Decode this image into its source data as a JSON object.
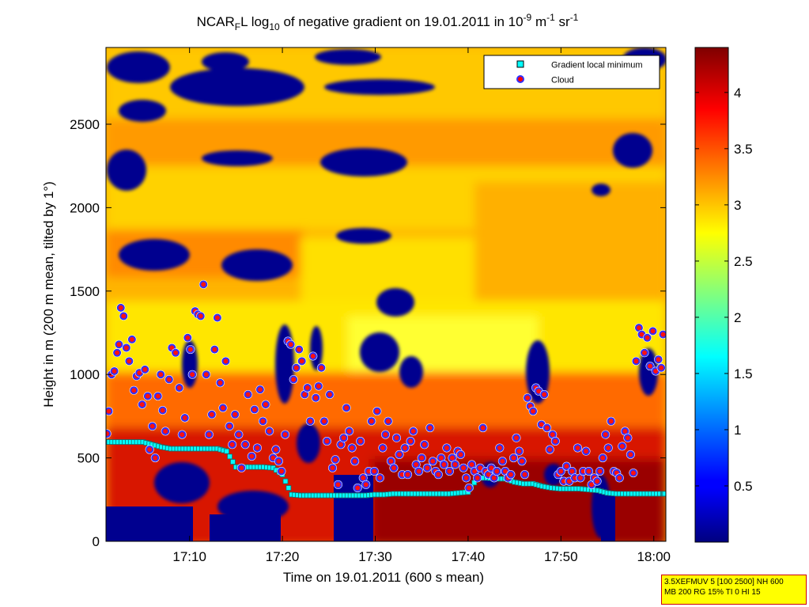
{
  "chart_data": {
    "type": "heatmap",
    "title": {
      "prefix": "NCAR",
      "prefix_sub": "F",
      "part1": "L log",
      "log_sub": "10",
      "part2": " of negative gradient on 19.01.2011 in 10",
      "exp1": "-9",
      "part3": " m",
      "exp2": "-1",
      "part4": " sr",
      "exp3": "-1"
    },
    "xlabel": "Time on 19.01.2011 (600 s mean)",
    "ylabel": "Height in m (200 m mean, tilted by 1°)",
    "x_unit": "minutes after 17:00",
    "xlim": [
      1,
      61.3
    ],
    "ylim": [
      0,
      2960
    ],
    "xticks": [
      {
        "value": 10,
        "label": "17:10"
      },
      {
        "value": 20,
        "label": "17:20"
      },
      {
        "value": 30,
        "label": "17:30"
      },
      {
        "value": 40,
        "label": "17:40"
      },
      {
        "value": 50,
        "label": "17:50"
      },
      {
        "value": 60,
        "label": "18:00"
      }
    ],
    "yticks": [
      0,
      500,
      1000,
      1500,
      2000,
      2500
    ],
    "colorbar": {
      "colormap": "jet",
      "range": [
        0,
        4.4
      ],
      "ticks": [
        0.5,
        1,
        1.5,
        2,
        2.5,
        3,
        3.5,
        4
      ]
    },
    "legend": {
      "placement": "top-right",
      "entries": [
        {
          "label": "Gradient local minimum",
          "marker": "square",
          "color": "#00ffff"
        },
        {
          "label": "Cloud",
          "marker": "circle",
          "color": "#ff0000"
        }
      ]
    },
    "series": [
      {
        "name": "Gradient local minimum",
        "points": [
          [
            1,
            595
          ],
          [
            2,
            595
          ],
          [
            3,
            595
          ],
          [
            4,
            595
          ],
          [
            5,
            595
          ],
          [
            6,
            580
          ],
          [
            7,
            565
          ],
          [
            8,
            555
          ],
          [
            9,
            555
          ],
          [
            10,
            555
          ],
          [
            11,
            555
          ],
          [
            12,
            555
          ],
          [
            13,
            555
          ],
          [
            14,
            540
          ],
          [
            15,
            445
          ],
          [
            16,
            445
          ],
          [
            17,
            445
          ],
          [
            18,
            445
          ],
          [
            19,
            440
          ],
          [
            20,
            400
          ],
          [
            21,
            280
          ],
          [
            22,
            275
          ],
          [
            23,
            275
          ],
          [
            24,
            275
          ],
          [
            25,
            275
          ],
          [
            26,
            275
          ],
          [
            27,
            275
          ],
          [
            28,
            275
          ],
          [
            29,
            275
          ],
          [
            30,
            280
          ],
          [
            31,
            280
          ],
          [
            32,
            285
          ],
          [
            33,
            285
          ],
          [
            34,
            285
          ],
          [
            35,
            285
          ],
          [
            36,
            285
          ],
          [
            37,
            285
          ],
          [
            38,
            285
          ],
          [
            39,
            290
          ],
          [
            40,
            295
          ],
          [
            41,
            380
          ],
          [
            42,
            380
          ],
          [
            43,
            375
          ],
          [
            44,
            375
          ],
          [
            45,
            355
          ],
          [
            46,
            345
          ],
          [
            47,
            345
          ],
          [
            48,
            330
          ],
          [
            49,
            320
          ],
          [
            50,
            315
          ],
          [
            51,
            315
          ],
          [
            52,
            315
          ],
          [
            53,
            310
          ],
          [
            54,
            305
          ],
          [
            55,
            290
          ],
          [
            56,
            285
          ],
          [
            57,
            285
          ],
          [
            58,
            285
          ],
          [
            59,
            285
          ],
          [
            60,
            285
          ],
          [
            61,
            285
          ]
        ]
      },
      {
        "name": "Cloud",
        "points": [
          [
            1.1,
            645
          ],
          [
            1.3,
            780
          ],
          [
            1.6,
            1000
          ],
          [
            1.9,
            1020
          ],
          [
            2.2,
            1130
          ],
          [
            2.4,
            1180
          ],
          [
            2.6,
            1400
          ],
          [
            2.9,
            1350
          ],
          [
            3.2,
            1160
          ],
          [
            3.5,
            1080
          ],
          [
            3.8,
            1210
          ],
          [
            4.0,
            905
          ],
          [
            4.3,
            990
          ],
          [
            4.6,
            1010
          ],
          [
            4.9,
            820
          ],
          [
            5.2,
            1030
          ],
          [
            5.5,
            870
          ],
          [
            5.7,
            550
          ],
          [
            6.0,
            690
          ],
          [
            6.3,
            500
          ],
          [
            6.6,
            870
          ],
          [
            6.9,
            1000
          ],
          [
            7.1,
            785
          ],
          [
            7.4,
            660
          ],
          [
            7.8,
            970
          ],
          [
            8.1,
            1160
          ],
          [
            8.5,
            1130
          ],
          [
            8.9,
            920
          ],
          [
            9.2,
            640
          ],
          [
            9.5,
            740
          ],
          [
            9.8,
            1220
          ],
          [
            10.1,
            1150
          ],
          [
            10.3,
            1000
          ],
          [
            10.6,
            1380
          ],
          [
            10.9,
            1360
          ],
          [
            11.2,
            1350
          ],
          [
            11.5,
            1540
          ],
          [
            11.8,
            1000
          ],
          [
            12.1,
            640
          ],
          [
            12.4,
            760
          ],
          [
            12.7,
            1150
          ],
          [
            13.0,
            1340
          ],
          [
            13.3,
            950
          ],
          [
            13.6,
            800
          ],
          [
            13.9,
            1080
          ],
          [
            14.3,
            690
          ],
          [
            14.6,
            580
          ],
          [
            14.9,
            760
          ],
          [
            15.3,
            640
          ],
          [
            15.6,
            440
          ],
          [
            16.0,
            580
          ],
          [
            16.3,
            880
          ],
          [
            16.7,
            510
          ],
          [
            17.0,
            790
          ],
          [
            17.3,
            560
          ],
          [
            17.6,
            910
          ],
          [
            17.9,
            720
          ],
          [
            18.2,
            820
          ],
          [
            18.6,
            660
          ],
          [
            19.0,
            500
          ],
          [
            19.3,
            550
          ],
          [
            19.6,
            480
          ],
          [
            19.9,
            420
          ],
          [
            20.3,
            640
          ],
          [
            20.6,
            1200
          ],
          [
            20.9,
            1180
          ],
          [
            21.2,
            970
          ],
          [
            21.5,
            1040
          ],
          [
            21.8,
            1150
          ],
          [
            22.1,
            1080
          ],
          [
            22.4,
            880
          ],
          [
            22.7,
            920
          ],
          [
            23.0,
            720
          ],
          [
            23.3,
            1110
          ],
          [
            23.6,
            860
          ],
          [
            23.9,
            930
          ],
          [
            24.2,
            1040
          ],
          [
            24.5,
            720
          ],
          [
            24.8,
            600
          ],
          [
            25.1,
            880
          ],
          [
            25.4,
            440
          ],
          [
            25.7,
            490
          ],
          [
            26.0,
            340
          ],
          [
            26.3,
            580
          ],
          [
            26.6,
            620
          ],
          [
            26.9,
            800
          ],
          [
            27.2,
            660
          ],
          [
            27.5,
            560
          ],
          [
            27.8,
            480
          ],
          [
            28.1,
            320
          ],
          [
            28.4,
            600
          ],
          [
            28.7,
            380
          ],
          [
            29.0,
            340
          ],
          [
            29.3,
            420
          ],
          [
            29.6,
            720
          ],
          [
            29.9,
            420
          ],
          [
            30.2,
            780
          ],
          [
            30.5,
            380
          ],
          [
            30.8,
            560
          ],
          [
            31.1,
            640
          ],
          [
            31.4,
            720
          ],
          [
            31.7,
            480
          ],
          [
            32.0,
            440
          ],
          [
            32.3,
            620
          ],
          [
            32.6,
            520
          ],
          [
            32.9,
            400
          ],
          [
            33.2,
            560
          ],
          [
            33.5,
            400
          ],
          [
            33.8,
            600
          ],
          [
            34.1,
            660
          ],
          [
            34.4,
            460
          ],
          [
            34.7,
            420
          ],
          [
            35.0,
            500
          ],
          [
            35.3,
            580
          ],
          [
            35.6,
            440
          ],
          [
            35.9,
            680
          ],
          [
            36.2,
            480
          ],
          [
            36.5,
            420
          ],
          [
            36.8,
            400
          ],
          [
            37.1,
            500
          ],
          [
            37.4,
            460
          ],
          [
            37.7,
            560
          ],
          [
            38.0,
            420
          ],
          [
            38.3,
            500
          ],
          [
            38.6,
            460
          ],
          [
            38.9,
            540
          ],
          [
            39.2,
            520
          ],
          [
            39.5,
            440
          ],
          [
            39.8,
            380
          ],
          [
            40.1,
            320
          ],
          [
            40.4,
            460
          ],
          [
            40.7,
            420
          ],
          [
            41.0,
            380
          ],
          [
            41.3,
            440
          ],
          [
            41.6,
            680
          ],
          [
            41.9,
            420
          ],
          [
            42.2,
            400
          ],
          [
            42.5,
            440
          ],
          [
            42.8,
            380
          ],
          [
            43.1,
            420
          ],
          [
            43.4,
            560
          ],
          [
            43.7,
            480
          ],
          [
            44.0,
            420
          ],
          [
            44.3,
            380
          ],
          [
            44.6,
            400
          ],
          [
            44.9,
            500
          ],
          [
            45.2,
            620
          ],
          [
            45.5,
            540
          ],
          [
            45.8,
            480
          ],
          [
            46.1,
            400
          ],
          [
            46.4,
            860
          ],
          [
            46.7,
            810
          ],
          [
            47.0,
            780
          ],
          [
            47.3,
            920
          ],
          [
            47.6,
            900
          ],
          [
            47.9,
            700
          ],
          [
            48.2,
            880
          ],
          [
            48.5,
            680
          ],
          [
            48.8,
            550
          ],
          [
            49.1,
            640
          ],
          [
            49.4,
            600
          ],
          [
            49.7,
            400
          ],
          [
            50.0,
            420
          ],
          [
            50.3,
            360
          ],
          [
            50.6,
            450
          ],
          [
            50.9,
            360
          ],
          [
            51.2,
            420
          ],
          [
            51.5,
            380
          ],
          [
            51.8,
            560
          ],
          [
            52.1,
            380
          ],
          [
            52.4,
            420
          ],
          [
            52.7,
            540
          ],
          [
            53.0,
            420
          ],
          [
            53.3,
            340
          ],
          [
            53.6,
            380
          ],
          [
            53.9,
            360
          ],
          [
            54.2,
            420
          ],
          [
            54.5,
            500
          ],
          [
            54.8,
            640
          ],
          [
            55.1,
            560
          ],
          [
            55.4,
            720
          ],
          [
            55.7,
            420
          ],
          [
            56.0,
            410
          ],
          [
            56.3,
            380
          ],
          [
            56.6,
            570
          ],
          [
            56.9,
            660
          ],
          [
            57.2,
            620
          ],
          [
            57.5,
            520
          ],
          [
            57.8,
            410
          ],
          [
            58.1,
            1080
          ],
          [
            58.4,
            1280
          ],
          [
            58.7,
            1240
          ],
          [
            59.0,
            1130
          ],
          [
            59.3,
            1220
          ],
          [
            59.6,
            1050
          ],
          [
            59.9,
            1260
          ],
          [
            60.2,
            1020
          ],
          [
            60.5,
            1090
          ],
          [
            60.8,
            1040
          ],
          [
            61.0,
            1240
          ]
        ]
      }
    ]
  },
  "info_box": {
    "line1": "3.5XEFMUV 5 [100 2500] NH 600",
    "line2": "MB 200 RG 15% TI 0 HI 15"
  }
}
